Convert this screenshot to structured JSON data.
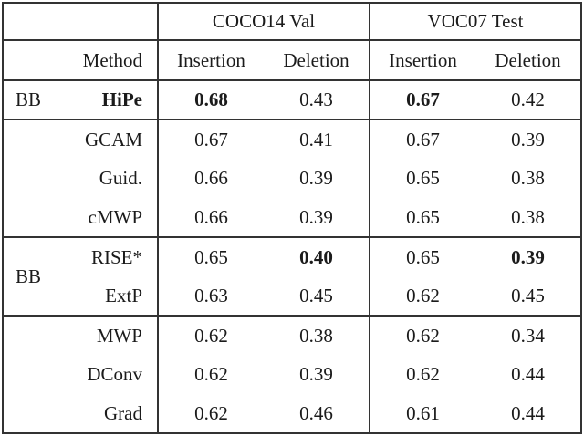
{
  "page": {
    "background_color": "#ffffff",
    "rule_color": "#333333",
    "text_color": "#1b1b1b"
  },
  "table": {
    "col_groups": [
      {
        "label": "COCO14 Val"
      },
      {
        "label": "VOC07 Test"
      }
    ],
    "header": {
      "method": "Method",
      "cols": [
        "Insertion",
        "Deletion",
        "Insertion",
        "Deletion"
      ]
    },
    "sections": [
      {
        "group": "BB",
        "rows": [
          {
            "method": "HiPe",
            "values": [
              "0.68",
              "0.43",
              "0.67",
              "0.42"
            ]
          }
        ]
      },
      {
        "group": "",
        "rows": [
          {
            "method": "GCAM",
            "values": [
              "0.67",
              "0.41",
              "0.67",
              "0.39"
            ]
          },
          {
            "method": "Guid.",
            "values": [
              "0.66",
              "0.39",
              "0.65",
              "0.38"
            ]
          },
          {
            "method": "cMWP",
            "values": [
              "0.66",
              "0.39",
              "0.65",
              "0.38"
            ]
          }
        ]
      },
      {
        "group": "BB",
        "rows": [
          {
            "method": "RISE*",
            "values": [
              "0.65",
              "0.40",
              "0.65",
              "0.39"
            ]
          },
          {
            "method": "ExtP",
            "values": [
              "0.63",
              "0.45",
              "0.62",
              "0.45"
            ]
          }
        ]
      },
      {
        "group": "",
        "rows": [
          {
            "method": "MWP",
            "values": [
              "0.62",
              "0.38",
              "0.62",
              "0.34"
            ]
          },
          {
            "method": "DConv",
            "values": [
              "0.62",
              "0.39",
              "0.62",
              "0.44"
            ]
          },
          {
            "method": "Grad",
            "values": [
              "0.62",
              "0.46",
              "0.61",
              "0.44"
            ]
          }
        ]
      }
    ]
  },
  "chart_data": {
    "type": "table",
    "title": "",
    "column_groups": [
      "COCO14 Val",
      "VOC07 Test"
    ],
    "columns": [
      "Method",
      "COCO14 Val Insertion",
      "COCO14 Val Deletion",
      "VOC07 Test Insertion",
      "VOC07 Test Deletion"
    ],
    "rows": [
      {
        "group": "BB",
        "method": "HiPe",
        "values": [
          0.68,
          0.43,
          0.67,
          0.42
        ],
        "bold": [
          "method",
          "ins_coco",
          "ins_voc"
        ]
      },
      {
        "group": "",
        "method": "GCAM",
        "values": [
          0.67,
          0.41,
          0.67,
          0.39
        ]
      },
      {
        "group": "",
        "method": "Guid.",
        "values": [
          0.66,
          0.39,
          0.65,
          0.38
        ]
      },
      {
        "group": "",
        "method": "cMWP",
        "values": [
          0.66,
          0.39,
          0.65,
          0.38
        ]
      },
      {
        "group": "BB",
        "method": "RISE*",
        "values": [
          0.65,
          0.4,
          0.65,
          0.39
        ],
        "bold": [
          "del_coco",
          "del_voc"
        ]
      },
      {
        "group": "BB",
        "method": "ExtP",
        "values": [
          0.63,
          0.45,
          0.62,
          0.45
        ]
      },
      {
        "group": "",
        "method": "MWP",
        "values": [
          0.62,
          0.38,
          0.62,
          0.34
        ]
      },
      {
        "group": "",
        "method": "DConv",
        "values": [
          0.62,
          0.39,
          0.62,
          0.44
        ]
      },
      {
        "group": "",
        "method": "Grad",
        "values": [
          0.62,
          0.46,
          0.61,
          0.44
        ]
      }
    ]
  }
}
